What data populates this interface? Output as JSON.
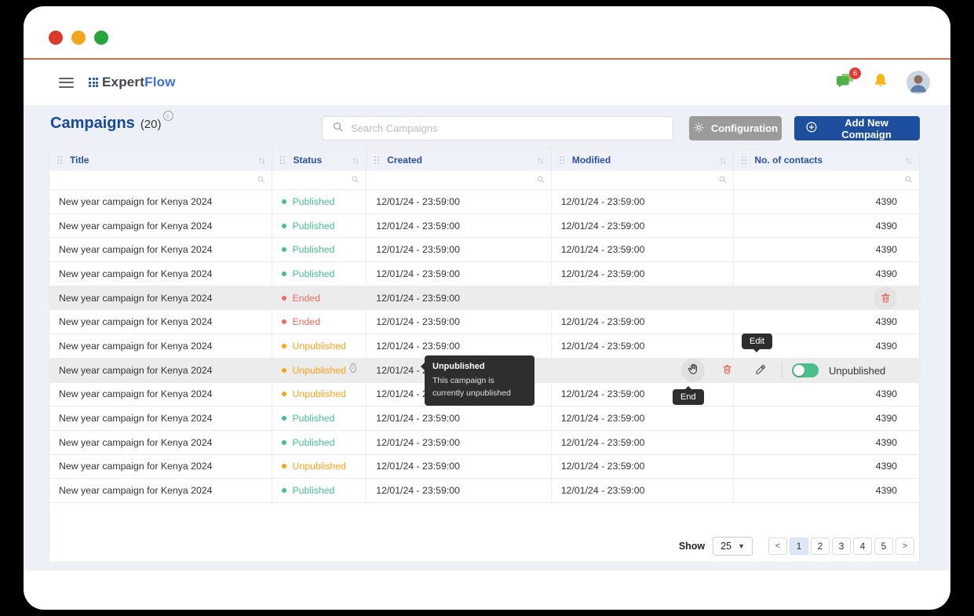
{
  "appbar": {
    "brand_prefix": "Expert",
    "brand_suffix": "Flow",
    "notifications_badge": "6"
  },
  "page": {
    "title": "Campaigns",
    "count": "(20)",
    "search_placeholder": "Search Campaigns",
    "configuration_label": "Configuration",
    "add_button_label": "Add New Compaign"
  },
  "table": {
    "columns": [
      {
        "label": "Title"
      },
      {
        "label": "Status"
      },
      {
        "label": "Created"
      },
      {
        "label": "Modified"
      },
      {
        "label": "No. of contacts"
      }
    ],
    "rows": [
      {
        "title": "New year campaign for Kenya 2024",
        "status": "Published",
        "status_type": "published",
        "created": "12/01/24 - 23:59:00",
        "modified": "12/01/24 - 23:59:00",
        "contacts": "4390"
      },
      {
        "title": "New year campaign for Kenya 2024",
        "status": "Published",
        "status_type": "published",
        "created": "12/01/24 - 23:59:00",
        "modified": "12/01/24 - 23:59:00",
        "contacts": "4390"
      },
      {
        "title": "New year campaign for Kenya 2024",
        "status": "Published",
        "status_type": "published",
        "created": "12/01/24 - 23:59:00",
        "modified": "12/01/24 - 23:59:00",
        "contacts": "4390"
      },
      {
        "title": "New year campaign for Kenya 2024",
        "status": "Published",
        "status_type": "published",
        "created": "12/01/24 - 23:59:00",
        "modified": "12/01/24 - 23:59:00",
        "contacts": "4390"
      },
      {
        "title": "New year campaign for Kenya 2024",
        "status": "Ended",
        "status_type": "ended",
        "created": "12/01/24 - 23:59:00",
        "modified": "",
        "contacts": "",
        "highlight": true,
        "trash": true
      },
      {
        "title": "New year campaign for Kenya 2024",
        "status": "Ended",
        "status_type": "ended",
        "created": "12/01/24 - 23:59:00",
        "modified": "12/01/24 - 23:59:00",
        "contacts": "4390"
      },
      {
        "title": "New year campaign for Kenya 2024",
        "status": "Unpublished",
        "status_type": "unpublished",
        "created": "12/01/24 - 23:59:00",
        "modified": "12/01/24 - 23:59:00",
        "contacts": "4390"
      },
      {
        "title": "New year campaign for Kenya 2024",
        "status": "Unpublished",
        "status_type": "unpublished",
        "created": "12/01/24 - 23:59:00",
        "modified": "",
        "contacts": "",
        "highlight": true,
        "info": true,
        "actions": true
      },
      {
        "title": "New year campaign for Kenya 2024",
        "status": "Unpublished",
        "status_type": "unpublished",
        "created": "12/01/24 - 23:59:00",
        "modified": "12/01/24 - 23:59:00",
        "contacts": "4390"
      },
      {
        "title": "New year campaign for Kenya 2024",
        "status": "Published",
        "status_type": "published",
        "created": "12/01/24 - 23:59:00",
        "modified": "12/01/24 - 23:59:00",
        "contacts": "4390"
      },
      {
        "title": "New year campaign for Kenya 2024",
        "status": "Published",
        "status_type": "published",
        "created": "12/01/24 - 23:59:00",
        "modified": "12/01/24 - 23:59:00",
        "contacts": "4390"
      },
      {
        "title": "New year campaign for Kenya 2024",
        "status": "Unpublished",
        "status_type": "unpublished",
        "created": "12/01/24 - 23:59:00",
        "modified": "12/01/24 - 23:59:00",
        "contacts": "4390"
      },
      {
        "title": "New year campaign for Kenya 2024",
        "status": "Published",
        "status_type": "published",
        "created": "12/01/24 - 23:59:00",
        "modified": "12/01/24 - 23:59:00",
        "contacts": "4390"
      }
    ]
  },
  "overlays": {
    "tooltip": {
      "title": "Unpublished",
      "body": "This campaign is currently unpublished"
    },
    "edit_label": "Edit",
    "end_label": "End",
    "toggle_label": "Unpublished"
  },
  "pagination": {
    "show_label": "Show",
    "page_size": "25",
    "pages": [
      "1",
      "2",
      "3",
      "4",
      "5"
    ],
    "active_page": "1",
    "prev": "<",
    "next": ">"
  },
  "colors": {
    "accent_blue": "#1d4f9e",
    "status_published": "#45c08e",
    "status_ended": "#f4695c",
    "status_unpublished": "#ffa115",
    "toggle_on": "#4cc08c",
    "badge_red": "#e53935",
    "titlebar_line": "#c96f58"
  }
}
